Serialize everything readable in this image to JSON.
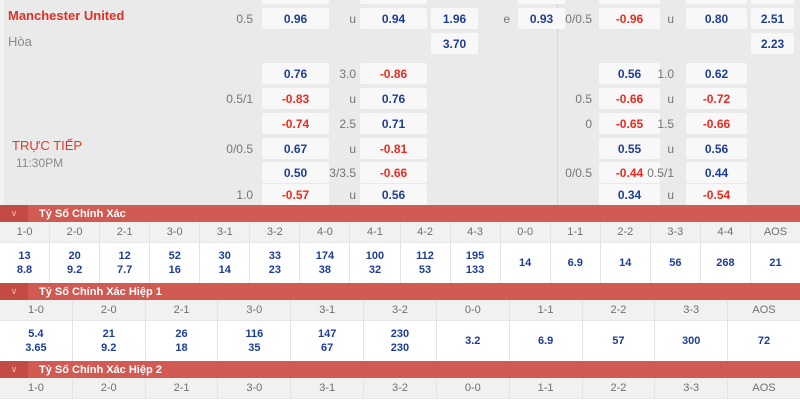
{
  "match": {
    "home_team": "Manchester United",
    "draw_label": "Hòa",
    "live_label": "TRỰC TIẾP",
    "time": "11:30PM"
  },
  "colors": {
    "positive_odds": "#1e3d99",
    "negative_odds": "#ec2a1f",
    "team_name": "#e03026",
    "section_band": "#d15a53",
    "section_band_square": "#c34b44",
    "odds_background": "#eaeaea"
  },
  "icons": {
    "section_collapse": "chevron-down-icon"
  },
  "odds_grid": {
    "left_block": {
      "slot_names": [
        "handicap",
        "odds1",
        "line",
        "odds2",
        "x12",
        "oddeven",
        "odds3"
      ],
      "rows": [
        [
          "0.5",
          "0.96",
          "u",
          "0.94",
          "1.96",
          "e",
          "0.93"
        ],
        [
          null,
          null,
          null,
          null,
          "3.70",
          null,
          null
        ],
        [
          null,
          "0.76",
          "3.0",
          "-0.86",
          null,
          null,
          null
        ],
        [
          "0.5/1",
          "-0.83",
          "u",
          "0.76",
          null,
          null,
          null
        ],
        [
          null,
          "-0.74",
          "2.5",
          "0.71",
          null,
          null,
          null
        ],
        [
          "0/0.5",
          "0.67",
          "u",
          "-0.81",
          null,
          null,
          null
        ],
        [
          null,
          "0.50",
          "3/3.5",
          "-0.66",
          null,
          null,
          null
        ],
        [
          "1.0",
          "-0.57",
          "u",
          "0.56",
          null,
          null,
          null
        ]
      ]
    },
    "right_block": {
      "slot_names": [
        "handicap",
        "odds1",
        "line",
        "odds2",
        "x12"
      ],
      "rows": [
        [
          "0/0.5",
          "-0.96",
          "u",
          "0.80",
          "2.51"
        ],
        [
          null,
          null,
          null,
          null,
          "2.23"
        ],
        [
          null,
          "0.56",
          "1.0",
          "0.62",
          null
        ],
        [
          "0.5",
          "-0.66",
          "u",
          "-0.72",
          null
        ],
        [
          "0",
          "-0.65",
          "1.5",
          "-0.66",
          null
        ],
        [
          null,
          "0.55",
          "u",
          "0.56",
          null
        ],
        [
          "0/0.5",
          "-0.44",
          "0.5/1",
          "0.44",
          null
        ],
        [
          null,
          "0.34",
          "u",
          "-0.54",
          null
        ]
      ]
    }
  },
  "sections": [
    {
      "title": "Tỷ Số Chính Xác",
      "columns": [
        "1-0",
        "2-0",
        "2-1",
        "3-0",
        "3-1",
        "3-2",
        "4-0",
        "4-1",
        "4-2",
        "4-3",
        "0-0",
        "1-1",
        "2-2",
        "3-3",
        "4-4",
        "AOS"
      ],
      "cells": [
        [
          "13",
          "8.8"
        ],
        [
          "20",
          "9.2"
        ],
        [
          "12",
          "7.7"
        ],
        [
          "52",
          "16"
        ],
        [
          "30",
          "14"
        ],
        [
          "33",
          "23"
        ],
        [
          "174",
          "38"
        ],
        [
          "100",
          "32"
        ],
        [
          "112",
          "53"
        ],
        [
          "195",
          "133"
        ],
        [
          "14"
        ],
        [
          "6.9"
        ],
        [
          "14"
        ],
        [
          "56"
        ],
        [
          "268"
        ],
        [
          "21"
        ]
      ]
    },
    {
      "title": "Tỷ Số Chính Xác Hiệp 1",
      "columns": [
        "1-0",
        "2-0",
        "2-1",
        "3-0",
        "3-1",
        "3-2",
        "0-0",
        "1-1",
        "2-2",
        "3-3",
        "AOS"
      ],
      "cells": [
        [
          "5.4",
          "3.65"
        ],
        [
          "21",
          "9.2"
        ],
        [
          "26",
          "18"
        ],
        [
          "116",
          "35"
        ],
        [
          "147",
          "67"
        ],
        [
          "230",
          "230"
        ],
        [
          "3.2"
        ],
        [
          "6.9"
        ],
        [
          "57"
        ],
        [
          "300"
        ],
        [
          "72"
        ]
      ]
    },
    {
      "title": "Tỷ Số Chính Xác Hiệp 2",
      "columns": [
        "1-0",
        "2-0",
        "2-1",
        "3-0",
        "3-1",
        "3-2",
        "0-0",
        "1-1",
        "2-2",
        "3-3",
        "AOS"
      ],
      "cells": []
    }
  ]
}
